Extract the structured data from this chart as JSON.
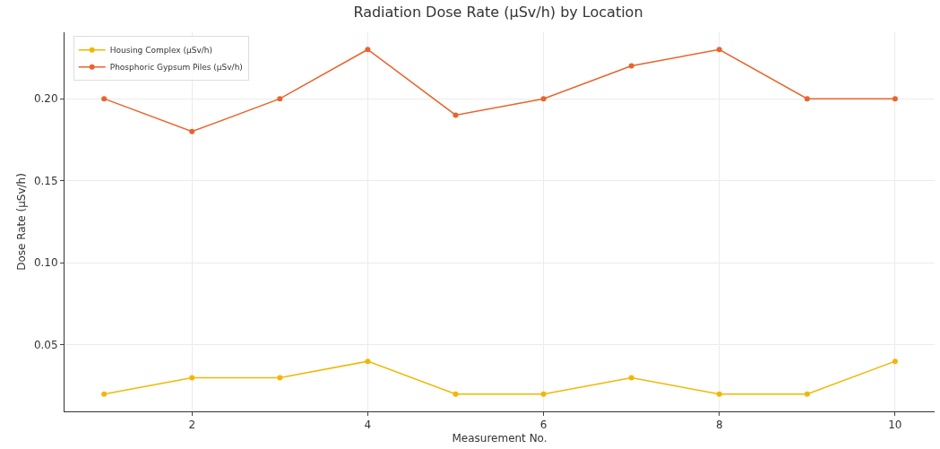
{
  "chart_data": {
    "type": "line",
    "title": "Radiation Dose Rate (µSv/h) by Location",
    "xlabel": "Measurement No.",
    "ylabel": "Dose Rate (µSv/h)",
    "x": [
      1,
      2,
      3,
      4,
      5,
      6,
      7,
      8,
      9,
      10
    ],
    "series": [
      {
        "name": "Housing Complex (µSv/h)",
        "color": "#f2b705",
        "values": [
          0.02,
          0.03,
          0.03,
          0.04,
          0.02,
          0.02,
          0.03,
          0.02,
          0.02,
          0.04
        ]
      },
      {
        "name": "Phosphoric Gypsum Piles (µSv/h)",
        "color": "#e8642c",
        "values": [
          0.2,
          0.18,
          0.2,
          0.23,
          0.19,
          0.2,
          0.22,
          0.23,
          0.2,
          0.2
        ]
      }
    ],
    "xlim": [
      0.55,
      10.45
    ],
    "xticks": [
      2,
      4,
      6,
      8,
      10
    ],
    "ylim": [
      0.0095,
      0.2405
    ],
    "yticks": [
      {
        "value": 0.05,
        "label": "0.05"
      },
      {
        "value": 0.1,
        "label": "0.10"
      },
      {
        "value": 0.15,
        "label": "0.15"
      },
      {
        "value": 0.2,
        "label": "0.20"
      }
    ],
    "grid": true,
    "legend": "top left",
    "marker": "circle",
    "line_style": "solid"
  }
}
